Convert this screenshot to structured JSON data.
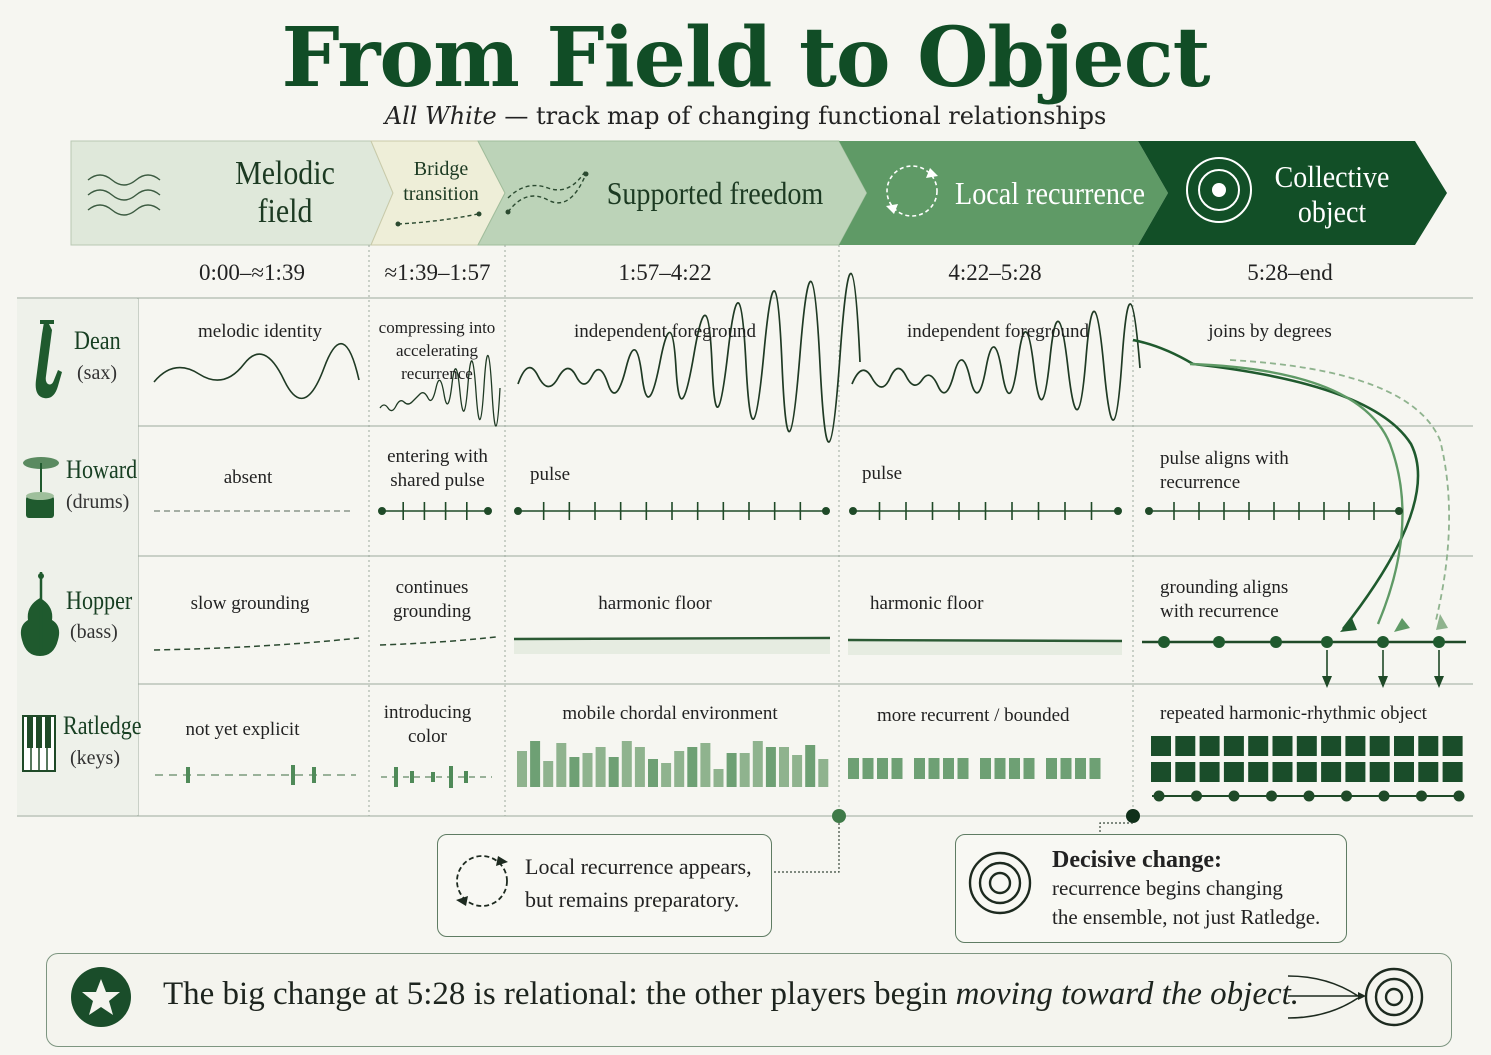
{
  "title": "From Field to Object",
  "subtitle": {
    "italic": "All White",
    "rest": " — track map of changing functional relationships"
  },
  "phases": [
    {
      "label": "Melodic field",
      "time": "0:00–≈1:39",
      "icon": "melodic-waves-icon",
      "color": "#dfe8da"
    },
    {
      "label": "Bridge transition",
      "time": "≈1:39–1:57",
      "icon": "dashed-path-icon",
      "color": "#eeeed8"
    },
    {
      "label": "Supported freedom",
      "time": "1:57–4:22",
      "icon": "dashed-curves-icon",
      "color": "#bcd3b8"
    },
    {
      "label": "Local recurrence",
      "time": "4:22–5:28",
      "icon": "cycle-arrows-icon",
      "color": "#5f9a66"
    },
    {
      "label": "Collective object",
      "time": "5:28–end",
      "icon": "target-icon",
      "color": "#124f27"
    }
  ],
  "players": [
    {
      "name": "Dean",
      "role": "(sax)",
      "icon": "saxophone-icon",
      "cells": [
        "melodic identity",
        "compressing into accelerating recurrence",
        "independent foreground",
        "independent foreground",
        "joins by degrees"
      ]
    },
    {
      "name": "Howard",
      "role": "(drums)",
      "icon": "drum-kit-icon",
      "cells": [
        "absent",
        "entering with shared pulse",
        "pulse",
        "pulse",
        "pulse aligns with recurrence"
      ]
    },
    {
      "name": "Hopper",
      "role": "(bass)",
      "icon": "double-bass-icon",
      "cells": [
        "slow grounding",
        "continues grounding",
        "harmonic floor",
        "harmonic floor",
        "grounding aligns with recurrence"
      ]
    },
    {
      "name": "Ratledge",
      "role": "(keys)",
      "icon": "piano-keys-icon",
      "cells": [
        "not yet explicit",
        "introducing color",
        "mobile chordal environment",
        "more recurrent / bounded",
        "repeated harmonic-rhythmic object"
      ]
    }
  ],
  "notes": {
    "local": {
      "line1": "Local recurrence appears,",
      "line2": "but remains preparatory.",
      "icon": "cycle-arrows-icon"
    },
    "decisive": {
      "heading": "Decisive change:",
      "line1": "recurrence begins changing",
      "line2": "the ensemble, not just Ratledge.",
      "icon": "target-icon"
    }
  },
  "footer": {
    "text_plain": "The big change at 5:28 is relational:  the other players begin ",
    "text_italic": "moving toward the object.",
    "icon_left": "star-icon",
    "icon_right": "converging-arrows-target-icon"
  },
  "colors": {
    "dark_green": "#124f27",
    "mid_green": "#3f7a48",
    "light_green": "#9fbf9c",
    "background": "#f6f6f1"
  }
}
